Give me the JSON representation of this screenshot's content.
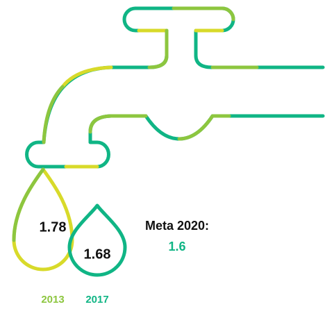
{
  "drops": [
    {
      "value": 1.78,
      "year": "2013"
    },
    {
      "value": 1.68,
      "year": "2017"
    }
  ],
  "goal": {
    "label": "Meta 2020:",
    "value": 1.6
  }
}
